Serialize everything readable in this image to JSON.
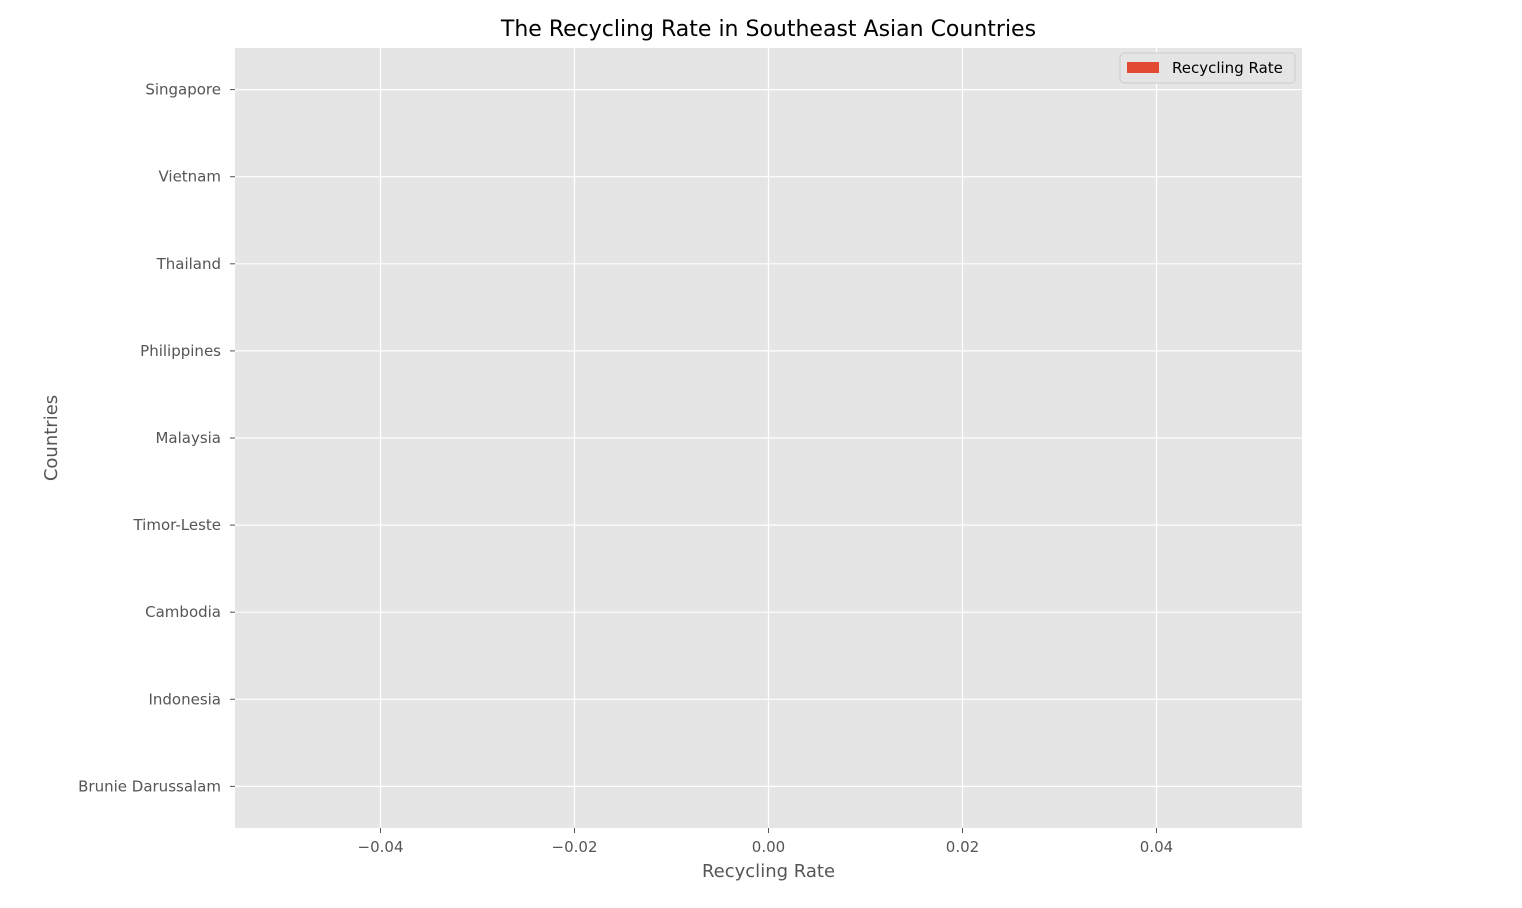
{
  "chart_data": {
    "type": "bar",
    "orientation": "horizontal",
    "title": "The Recycling Rate in Southeast Asian Countries",
    "xlabel": "Recycling Rate",
    "ylabel": "Countries",
    "categories": [
      "Singapore",
      "Vietnam",
      "Thailand",
      "Philippines",
      "Malaysia",
      "Timor-Leste",
      "Cambodia",
      "Indonesia",
      "Brunie Darussalam"
    ],
    "series": [
      {
        "name": "Recycling Rate",
        "values": [
          0,
          0,
          0,
          0,
          0,
          0,
          0,
          0,
          0
        ],
        "color": "#e24a33"
      }
    ],
    "xlim": [
      -0.055,
      0.055
    ],
    "x_ticks": [
      -0.04,
      -0.02,
      0.0,
      0.02,
      0.04
    ],
    "x_tick_labels": [
      "−0.04",
      "−0.02",
      "0.00",
      "0.02",
      "0.04"
    ],
    "grid": true,
    "legend_position": "top-right",
    "colors": {
      "plot_background": "#e5e5e5",
      "grid": "#ffffff",
      "tick_text": "#555555"
    }
  }
}
